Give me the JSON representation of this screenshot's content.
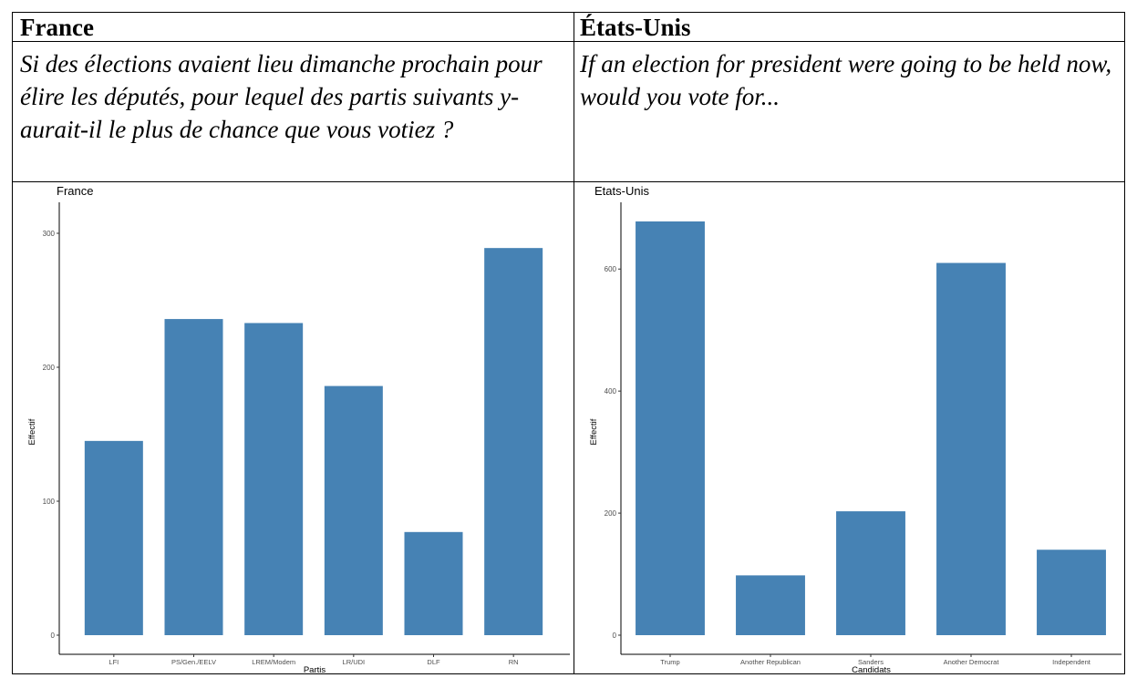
{
  "table": {
    "left_header": "France",
    "right_header": "États-Unis",
    "left_question": "Si des élections avaient lieu dimanche prochain pour élire les députés, pour lequel des partis suivants y-aurait-il le plus de chance que vous votiez ?",
    "right_question": "If an election for president were going to be held now, would you vote for..."
  },
  "colors": {
    "bar": "#4682b4"
  },
  "chart_data": [
    {
      "type": "bar",
      "title": "France",
      "xlabel": "Partis",
      "ylabel": "Effectif",
      "categories": [
        "LFI",
        "PS/Gen./EELV",
        "LREM/Modem",
        "LR/UDI",
        "DLF",
        "RN"
      ],
      "values": [
        145,
        236,
        233,
        186,
        77,
        289
      ],
      "ylim": [
        0,
        300
      ],
      "yticks": [
        0,
        100,
        200,
        300
      ]
    },
    {
      "type": "bar",
      "title": "Etats-Unis",
      "xlabel": "Candidats",
      "ylabel": "Effectif",
      "categories": [
        "Trump",
        "Another Republican",
        "Sanders",
        "Another Democrat",
        "Independent"
      ],
      "values": [
        678,
        98,
        203,
        610,
        140
      ],
      "ylim": [
        0,
        678
      ],
      "yticks": [
        0,
        200,
        400,
        600
      ]
    }
  ]
}
